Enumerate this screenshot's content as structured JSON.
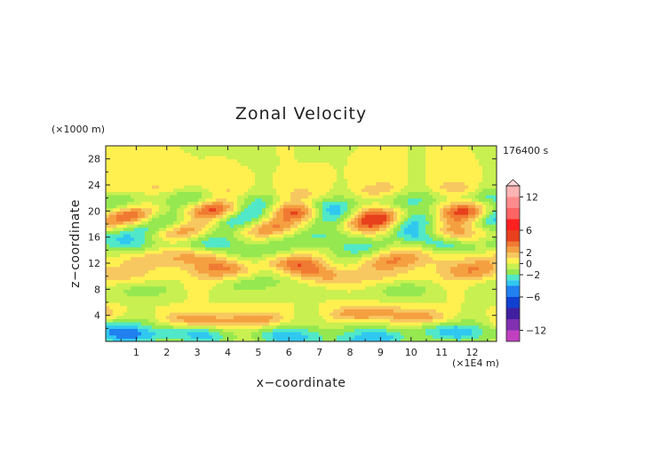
{
  "chart_data": {
    "type": "heatmap",
    "title": "Zonal Velocity",
    "xlabel": "x−coordinate",
    "ylabel": "z−coordinate",
    "x_unit": "(×1E4 m)",
    "y_unit": "(×1000 m)",
    "time_label": "176400 s",
    "xlim": [
      0,
      12.8
    ],
    "ylim": [
      0,
      30
    ],
    "x_ticks": [
      "1",
      "2",
      "3",
      "4",
      "5",
      "6",
      "7",
      "8",
      "9",
      "10",
      "11",
      "12"
    ],
    "y_ticks": [
      "4",
      "8",
      "12",
      "16",
      "20",
      "24",
      "28"
    ],
    "colorbar": {
      "tick_labels": [
        "12",
        "6",
        "2",
        "0",
        "−2",
        "−6",
        "−12"
      ],
      "levels": [
        14,
        12,
        10,
        8,
        6,
        4,
        3,
        2,
        1,
        0,
        -1,
        -2,
        -3,
        -4,
        -6,
        -8,
        -10,
        -12,
        -14
      ],
      "colors": [
        "#ffb4b4",
        "#ff8c8c",
        "#ff6464",
        "#ff2020",
        "#e8401c",
        "#f07a32",
        "#f5a040",
        "#f7c860",
        "#fff050",
        "#c8f050",
        "#96e850",
        "#50e8c8",
        "#30c8f0",
        "#2080f0",
        "#1040d0",
        "#4020a0",
        "#8030b0",
        "#c040c0",
        "#ff40c0"
      ]
    },
    "bands": [
      {
        "z": 0.5,
        "u": -3,
        "amp": 1.5
      },
      {
        "z": 1.5,
        "u": -2.5,
        "amp": 1.5
      },
      {
        "z": 3.8,
        "u": 3.2,
        "amp": 1.2
      },
      {
        "z": 6.5,
        "u": 0,
        "amp": 1.5
      },
      {
        "z": 8.5,
        "u": -1.5,
        "amp": 1.5
      },
      {
        "z": 10.5,
        "u": 2.5,
        "amp": 1.5
      },
      {
        "z": 12.5,
        "u": 3,
        "amp": 1.5
      },
      {
        "z": 14.2,
        "u": -2,
        "amp": 1.5
      },
      {
        "z": 15.8,
        "u": -2.5,
        "amp": 1.5
      },
      {
        "z": 17.3,
        "u": 3,
        "amp": 1.5
      },
      {
        "z": 18.8,
        "u": -3,
        "amp": 2
      },
      {
        "z": 19.8,
        "u": 4.5,
        "amp": 1.5
      },
      {
        "z": 21.5,
        "u": -2.5,
        "amp": 1.5
      },
      {
        "z": 23.2,
        "u": 1.5,
        "amp": 1.2
      },
      {
        "z": 26.5,
        "u": 0,
        "amp": 1
      }
    ]
  }
}
